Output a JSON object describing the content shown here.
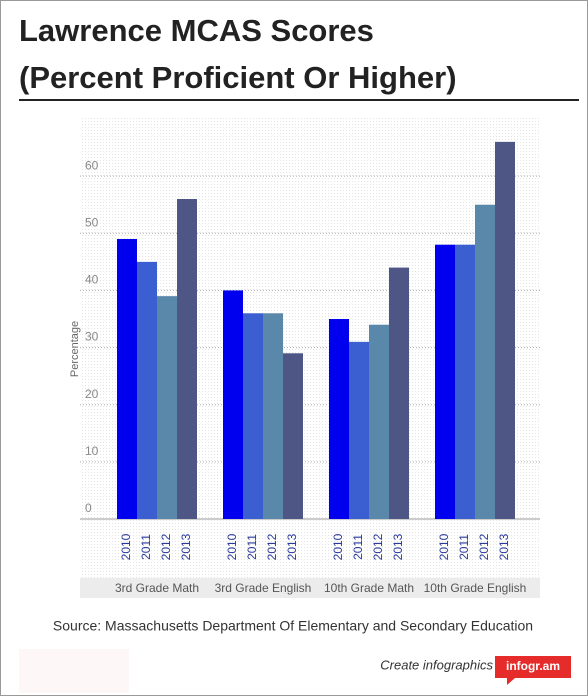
{
  "chart_data": {
    "type": "bar",
    "title": [
      "Lawrence MCAS Scores",
      "(Percent Proficient Or Higher)"
    ],
    "y_label": "Percentage",
    "categories": [
      "3rd Grade Math",
      "3rd Grade English",
      "10th Grade Math",
      "10th Grade English"
    ],
    "series": [
      {
        "name": "2010",
        "color": "#0000ee",
        "values": [
          49,
          40,
          35,
          48
        ]
      },
      {
        "name": "2011",
        "color": "#3b5fd0",
        "values": [
          45,
          36,
          31,
          48
        ]
      },
      {
        "name": "2012",
        "color": "#5a88aa",
        "values": [
          39,
          36,
          34,
          55
        ]
      },
      {
        "name": "2013",
        "color": "#4e5686",
        "values": [
          56,
          29,
          44,
          66
        ]
      }
    ],
    "ylim": [
      0,
      70
    ],
    "yticks": [
      0,
      10,
      20,
      30,
      40,
      50,
      60
    ],
    "grid": true,
    "source": "Source: Massachusetts Department Of Elementary and Secondary Education",
    "footer": {
      "text": "Create infographics",
      "brand": "infogr.am"
    }
  }
}
